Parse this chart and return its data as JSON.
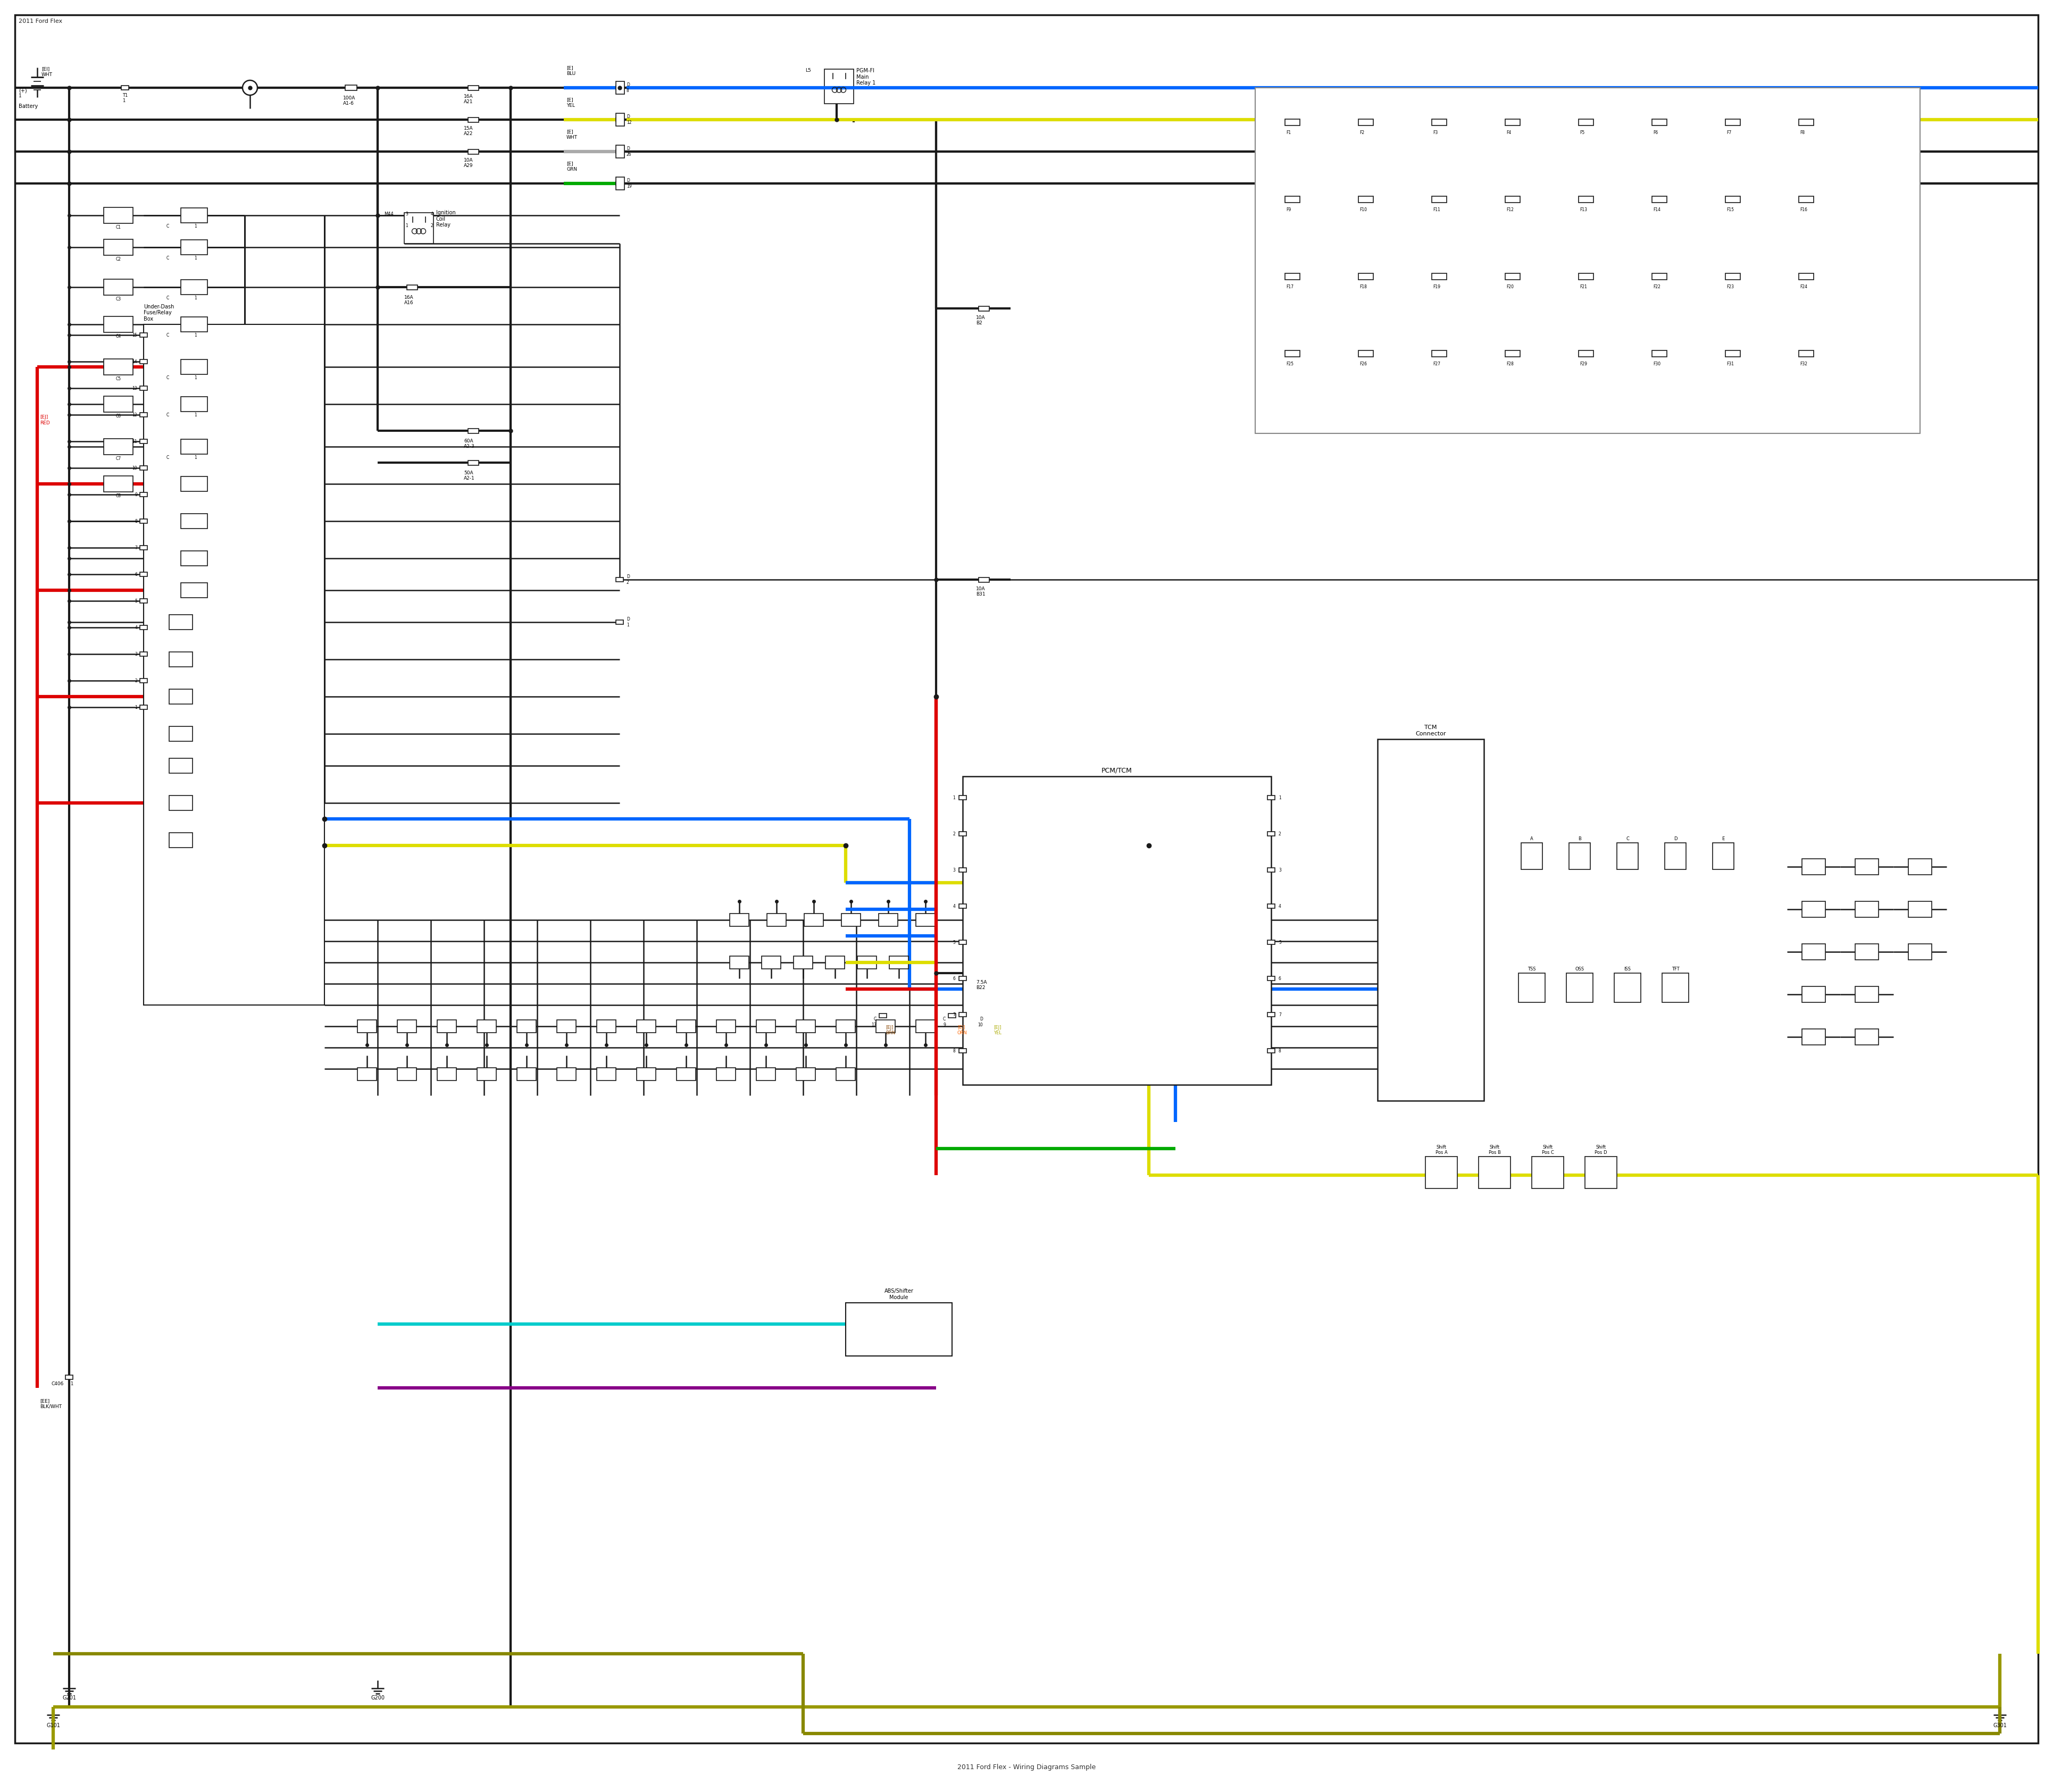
{
  "bg_color": "#ffffff",
  "line_color": "#1a1a1a",
  "fig_width": 38.4,
  "fig_height": 33.5,
  "title": "2011 Ford Flex Wiring Diagrams Sample"
}
